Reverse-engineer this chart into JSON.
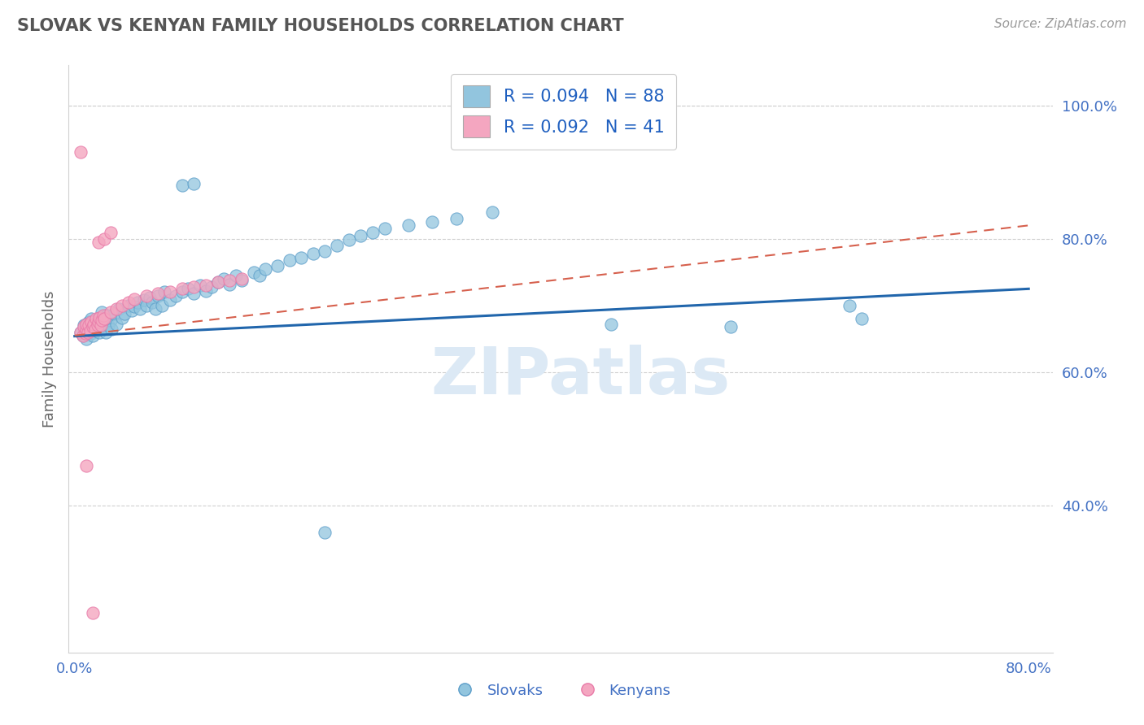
{
  "title": "SLOVAK VS KENYAN FAMILY HOUSEHOLDS CORRELATION CHART",
  "source_text": "Source: ZipAtlas.com",
  "ylabel": "Family Households",
  "xlim": [
    -0.005,
    0.82
  ],
  "ylim": [
    0.18,
    1.06
  ],
  "xticks": [
    0.0,
    0.8
  ],
  "xticklabels": [
    "0.0%",
    "80.0%"
  ],
  "yticks": [
    0.4,
    0.6,
    0.8,
    1.0
  ],
  "yticklabels": [
    "40.0%",
    "60.0%",
    "80.0%",
    "100.0%"
  ],
  "legend_r1": "R = 0.094   N = 88",
  "legend_r2": "R = 0.092   N = 41",
  "legend_label1": "Slovaks",
  "legend_label2": "Kenyans",
  "blue_color": "#92c5de",
  "pink_color": "#f4a6c0",
  "blue_edge_color": "#5b9dc9",
  "pink_edge_color": "#e87aa8",
  "blue_line_color": "#2166ac",
  "pink_line_color": "#d6604d",
  "title_color": "#555555",
  "axis_label_color": "#666666",
  "tick_color": "#4472c4",
  "grid_color": "#d0d0d0",
  "grid_dash_color": "#c8c8c8",
  "watermark_color": "#dce9f5",
  "background_color": "#ffffff",
  "sk_line_x": [
    0.0,
    0.8
  ],
  "sk_line_y": [
    0.654,
    0.725
  ],
  "ke_line_x": [
    0.0,
    0.8
  ],
  "ke_line_y": [
    0.655,
    0.82
  ],
  "slovaks_x": [
    0.005,
    0.007,
    0.008,
    0.009,
    0.01,
    0.01,
    0.01,
    0.011,
    0.012,
    0.012,
    0.013,
    0.014,
    0.014,
    0.015,
    0.015,
    0.016,
    0.017,
    0.018,
    0.018,
    0.019,
    0.02,
    0.02,
    0.021,
    0.022,
    0.022,
    0.023,
    0.024,
    0.025,
    0.026,
    0.027,
    0.028,
    0.03,
    0.031,
    0.033,
    0.035,
    0.037,
    0.04,
    0.042,
    0.045,
    0.048,
    0.05,
    0.053,
    0.055,
    0.058,
    0.06,
    0.063,
    0.065,
    0.068,
    0.07,
    0.073,
    0.075,
    0.08,
    0.085,
    0.09,
    0.095,
    0.1,
    0.105,
    0.11,
    0.115,
    0.12,
    0.125,
    0.13,
    0.135,
    0.14,
    0.15,
    0.155,
    0.16,
    0.17,
    0.18,
    0.19,
    0.2,
    0.21,
    0.22,
    0.23,
    0.24,
    0.25,
    0.26,
    0.28,
    0.3,
    0.32,
    0.35,
    0.45,
    0.55,
    0.65,
    0.66,
    0.09,
    0.1,
    0.21
  ],
  "slovaks_y": [
    0.66,
    0.655,
    0.67,
    0.658,
    0.663,
    0.672,
    0.65,
    0.668,
    0.66,
    0.675,
    0.665,
    0.658,
    0.68,
    0.67,
    0.655,
    0.672,
    0.668,
    0.662,
    0.678,
    0.665,
    0.67,
    0.68,
    0.66,
    0.675,
    0.668,
    0.69,
    0.672,
    0.68,
    0.66,
    0.685,
    0.67,
    0.678,
    0.665,
    0.688,
    0.672,
    0.695,
    0.682,
    0.688,
    0.7,
    0.692,
    0.698,
    0.705,
    0.695,
    0.708,
    0.7,
    0.712,
    0.705,
    0.695,
    0.715,
    0.7,
    0.72,
    0.708,
    0.715,
    0.72,
    0.725,
    0.718,
    0.73,
    0.722,
    0.728,
    0.735,
    0.74,
    0.732,
    0.745,
    0.738,
    0.75,
    0.745,
    0.755,
    0.76,
    0.768,
    0.772,
    0.778,
    0.782,
    0.79,
    0.798,
    0.805,
    0.81,
    0.815,
    0.82,
    0.825,
    0.83,
    0.84,
    0.672,
    0.668,
    0.7,
    0.68,
    0.88,
    0.882,
    0.36
  ],
  "kenyans_x": [
    0.005,
    0.007,
    0.008,
    0.009,
    0.01,
    0.01,
    0.011,
    0.012,
    0.013,
    0.014,
    0.015,
    0.016,
    0.017,
    0.018,
    0.019,
    0.02,
    0.021,
    0.022,
    0.023,
    0.024,
    0.025,
    0.03,
    0.035,
    0.04,
    0.045,
    0.05,
    0.06,
    0.07,
    0.08,
    0.09,
    0.1,
    0.11,
    0.12,
    0.13,
    0.14,
    0.02,
    0.025,
    0.03,
    0.005,
    0.01,
    0.015
  ],
  "kenyans_y": [
    0.66,
    0.655,
    0.668,
    0.658,
    0.665,
    0.672,
    0.66,
    0.67,
    0.662,
    0.675,
    0.668,
    0.672,
    0.665,
    0.68,
    0.67,
    0.675,
    0.682,
    0.67,
    0.678,
    0.685,
    0.68,
    0.69,
    0.695,
    0.7,
    0.705,
    0.71,
    0.715,
    0.718,
    0.72,
    0.725,
    0.728,
    0.73,
    0.735,
    0.738,
    0.74,
    0.795,
    0.8,
    0.81,
    0.93,
    0.46,
    0.24
  ]
}
